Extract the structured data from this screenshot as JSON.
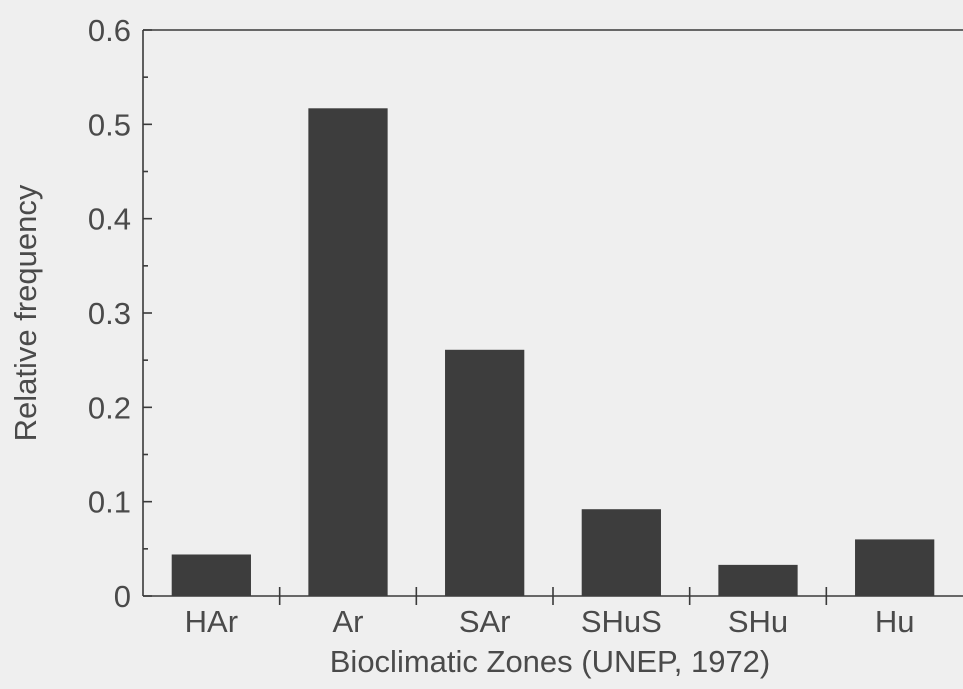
{
  "chart_data": {
    "type": "bar",
    "categories": [
      "HAr",
      "Ar",
      "SAr",
      "SHuS",
      "SHu",
      "Hu"
    ],
    "values": [
      0.044,
      0.517,
      0.261,
      0.092,
      0.033,
      0.06
    ],
    "xlabel": "Bioclimatic Zones (UNEP, 1972)",
    "ylabel": "Relative frequency",
    "ylim": [
      0,
      0.6
    ],
    "yticks": [
      0,
      0.1,
      0.2,
      0.3,
      0.4,
      0.5,
      0.6
    ],
    "ytick_labels": [
      "0",
      "0.1",
      "0.2",
      "0.3",
      "0.4",
      "0.5",
      "0.6"
    ],
    "grid": false,
    "bar_color": "#3d3d3d"
  }
}
